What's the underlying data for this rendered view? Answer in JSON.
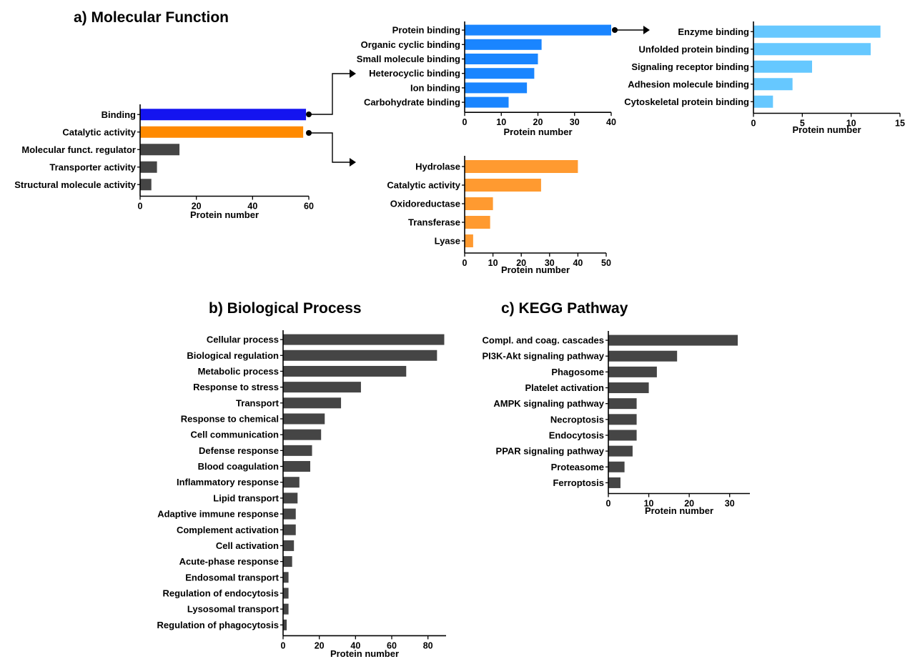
{
  "panel_titles": {
    "a": "a) Molecular Function",
    "b": "b) Biological Process",
    "c": "c) KEGG Pathway"
  },
  "chart_data": [
    {
      "id": "mf-main",
      "type": "bar",
      "orientation": "horizontal",
      "categories": [
        "Binding",
        "Catalytic activity",
        "Molecular funct. regulator",
        "Transporter activity",
        "Structural molecule activity"
      ],
      "values": [
        59,
        58,
        14,
        6,
        4
      ],
      "bar_colors": [
        "#1414f0",
        "#ff8a00",
        "#454545",
        "#454545",
        "#454545"
      ],
      "xlabel": "Protein number",
      "xlim": [
        0,
        60
      ],
      "xticks": [
        0,
        20,
        40,
        60
      ]
    },
    {
      "id": "mf-binding",
      "type": "bar",
      "orientation": "horizontal",
      "categories": [
        "Protein binding",
        "Organic cyclic binding",
        "Small molecule binding",
        "Heterocyclic binding",
        "Ion binding",
        "Carbohydrate binding"
      ],
      "values": [
        40,
        21,
        20,
        19,
        17,
        12
      ],
      "color": "#1a85ff",
      "xlabel": "Protein number",
      "xlim": [
        0,
        40
      ],
      "xticks": [
        0,
        10,
        20,
        30,
        40
      ]
    },
    {
      "id": "mf-protein-binding",
      "type": "bar",
      "orientation": "horizontal",
      "categories": [
        "Enzyme binding",
        "Unfolded protein binding",
        "Signaling receptor binding",
        "Adhesion molecule binding",
        "Cytoskeletal protein binding"
      ],
      "values": [
        13,
        12,
        6,
        4,
        2
      ],
      "color": "#66c8ff",
      "xlabel": "Protein number",
      "xlim": [
        0,
        15
      ],
      "xticks": [
        0,
        5,
        10,
        15
      ]
    },
    {
      "id": "mf-catalytic",
      "type": "bar",
      "orientation": "horizontal",
      "categories": [
        "Hydrolase",
        "Catalytic activity",
        "Oxidoreductase",
        "Transferase",
        "Lyase"
      ],
      "values": [
        40,
        27,
        10,
        9,
        3
      ],
      "color": "#ff9a30",
      "xlabel": "Protein number",
      "xlim": [
        0,
        50
      ],
      "xticks": [
        0,
        10,
        20,
        30,
        40,
        50
      ]
    },
    {
      "id": "bp",
      "type": "bar",
      "orientation": "horizontal",
      "categories": [
        "Cellular process",
        "Biological regulation",
        "Metabolic process",
        "Response to stress",
        "Transport",
        "Response to chemical",
        "Cell communication",
        "Defense response",
        "Blood coagulation",
        "Inflammatory response",
        "Lipid transport",
        "Adaptive immune response",
        "Complement activation",
        "Cell activation",
        "Acute-phase response",
        "Endosomal transport",
        "Regulation of endocytosis",
        "Lysosomal transport",
        "Regulation of phagocytosis"
      ],
      "values": [
        89,
        85,
        68,
        43,
        32,
        23,
        21,
        16,
        15,
        9,
        8,
        7,
        7,
        6,
        5,
        3,
        3,
        3,
        2
      ],
      "color": "#454545",
      "xlabel": "Protein number",
      "xlim": [
        0,
        90
      ],
      "xticks": [
        0,
        20,
        40,
        60,
        80
      ]
    },
    {
      "id": "kegg",
      "type": "bar",
      "orientation": "horizontal",
      "categories": [
        "Compl. and coag. cascades",
        "PI3K-Akt signaling pathway",
        "Phagosome",
        "Platelet activation",
        "AMPK signaling pathway",
        "Necroptosis",
        "Endocytosis",
        "PPAR signaling pathway",
        "Proteasome",
        "Ferroptosis"
      ],
      "values": [
        32,
        17,
        12,
        10,
        7,
        7,
        7,
        6,
        4,
        3
      ],
      "color": "#454545",
      "xlabel": "Protein number",
      "xlim": [
        0,
        35
      ],
      "xticks": [
        0,
        10,
        20,
        30
      ]
    }
  ]
}
